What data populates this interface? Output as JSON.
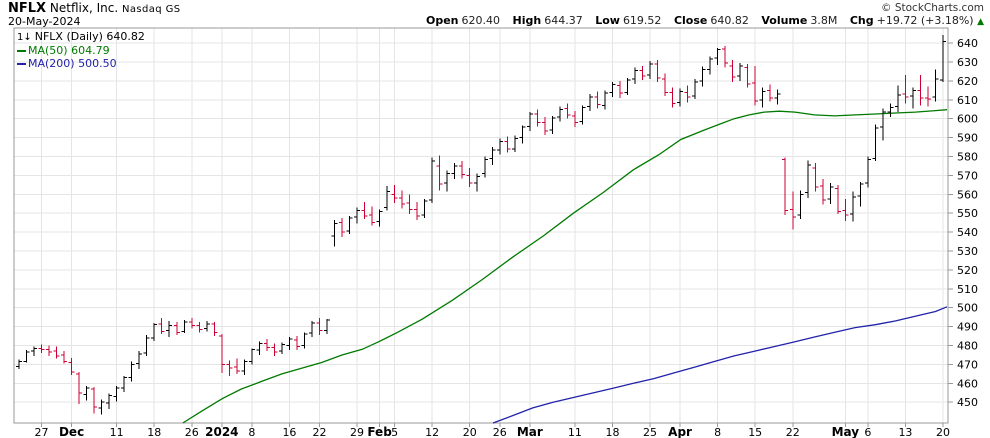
{
  "header": {
    "symbol": "NFLX",
    "company": "Netflix, Inc.",
    "exchange": "Nasdaq GS",
    "date": "20-May-2024",
    "copyright": "© StockCharts.com",
    "quote": {
      "open_label": "Open",
      "open": "620.40",
      "high_label": "High",
      "high": "644.37",
      "low_label": "Low",
      "low": "619.52",
      "close_label": "Close",
      "close": "640.82",
      "volume_label": "Volume",
      "volume": "3.8M",
      "chg_label": "Chg",
      "chg": "+19.72 (+3.18%)",
      "chg_arrow": "▲",
      "chg_direction": "up"
    }
  },
  "legend": {
    "icon": "1↓",
    "symbol_line": "NFLX (Daily) 640.82",
    "ma50_line": "MA(50) 604.79",
    "ma200_line": "MA(200) 500.50",
    "ma50_value": 604.79,
    "ma200_value": 500.5,
    "last_value": 640.82
  },
  "colors": {
    "up": "#000000",
    "down": "#cc0033",
    "ma50": "#007a00",
    "ma200": "#2222aa",
    "grid": "#e5e5e5",
    "axis": "#999999",
    "label": "#000000",
    "chg_arrow": "#007a00"
  },
  "chart_data": {
    "type": "ohlc-bar",
    "symbol": "NFLX",
    "timeframe": "Daily",
    "title": "NFLX (Daily) 640.82",
    "legend_position": "top-left",
    "grid": true,
    "y_axis": {
      "min": 450,
      "max": 640,
      "step": 10,
      "side": "right"
    },
    "y_ticks": [
      450,
      460,
      470,
      480,
      490,
      500,
      510,
      520,
      530,
      540,
      550,
      560,
      570,
      580,
      590,
      600,
      610,
      620,
      630,
      640
    ],
    "x_ticks": [
      {
        "i": 3,
        "label": "27"
      },
      {
        "i": 7,
        "label": "Dec",
        "bold": true
      },
      {
        "i": 13,
        "label": "11"
      },
      {
        "i": 18,
        "label": "18"
      },
      {
        "i": 23,
        "label": "26"
      },
      {
        "i": 27,
        "label": "2024",
        "bold": true
      },
      {
        "i": 31,
        "label": "8"
      },
      {
        "i": 36,
        "label": "16"
      },
      {
        "i": 40,
        "label": "22"
      },
      {
        "i": 45,
        "label": "29"
      },
      {
        "i": 48,
        "label": "Feb",
        "bold": true
      },
      {
        "i": 50,
        "label": "5"
      },
      {
        "i": 55,
        "label": "12"
      },
      {
        "i": 60,
        "label": "20"
      },
      {
        "i": 64,
        "label": "26"
      },
      {
        "i": 68,
        "label": "Mar",
        "bold": true
      },
      {
        "i": 74,
        "label": "11"
      },
      {
        "i": 79,
        "label": "18"
      },
      {
        "i": 84,
        "label": "25"
      },
      {
        "i": 88,
        "label": "Apr",
        "bold": true
      },
      {
        "i": 93,
        "label": "8"
      },
      {
        "i": 98,
        "label": "15"
      },
      {
        "i": 103,
        "label": "22"
      },
      {
        "i": 110,
        "label": "May",
        "bold": true
      },
      {
        "i": 113,
        "label": "6"
      },
      {
        "i": 118,
        "label": "13"
      },
      {
        "i": 123,
        "label": "20"
      }
    ],
    "bars": [
      [
        "2023-11-21",
        469,
        472.5,
        467.5,
        471.5
      ],
      [
        "2023-11-22",
        471.5,
        477.5,
        471,
        476.5
      ],
      [
        "2023-11-24",
        477,
        479.5,
        474.5,
        478.5
      ],
      [
        "2023-11-27",
        478.5,
        480.5,
        476,
        478
      ],
      [
        "2023-11-28",
        478,
        480,
        474.5,
        476.5
      ],
      [
        "2023-11-29",
        477,
        479.5,
        473,
        474.5
      ],
      [
        "2023-11-30",
        475,
        477,
        470.5,
        471.5
      ],
      [
        "2023-12-01",
        471,
        473.5,
        464.5,
        466
      ],
      [
        "2023-12-04",
        465,
        466,
        449,
        455
      ],
      [
        "2023-12-05",
        454,
        458.5,
        451,
        457.5
      ],
      [
        "2023-12-06",
        457,
        458,
        444,
        447.5
      ],
      [
        "2023-12-07",
        447,
        451.5,
        443.5,
        450
      ],
      [
        "2023-12-08",
        449.5,
        454.5,
        446.5,
        453.5
      ],
      [
        "2023-12-11",
        453,
        458.5,
        450.5,
        457.5
      ],
      [
        "2023-12-12",
        457.5,
        464,
        455.5,
        463
      ],
      [
        "2023-12-13",
        463,
        471.5,
        461,
        470
      ],
      [
        "2023-12-14",
        470.5,
        477,
        467.5,
        475.5
      ],
      [
        "2023-12-15",
        476,
        485.5,
        474.5,
        484
      ],
      [
        "2023-12-18",
        484,
        492,
        482.5,
        491
      ],
      [
        "2023-12-19",
        491.5,
        494.5,
        486,
        487.5
      ],
      [
        "2023-12-20",
        488,
        493,
        484.5,
        490.5
      ],
      [
        "2023-12-21",
        490.5,
        492.5,
        485.5,
        487
      ],
      [
        "2023-12-22",
        487.5,
        493.5,
        486.5,
        492.5
      ],
      [
        "2023-12-26",
        492.5,
        494.5,
        489,
        490.5
      ],
      [
        "2023-12-27",
        490.5,
        492.5,
        487,
        488.5
      ],
      [
        "2023-12-28",
        489,
        493,
        487.5,
        491.5
      ],
      [
        "2023-12-29",
        491.5,
        492.5,
        485,
        487
      ],
      [
        "2024-01-02",
        485,
        486,
        465.5,
        470
      ],
      [
        "2024-01-03",
        470,
        472,
        464,
        468
      ],
      [
        "2024-01-04",
        468.5,
        473,
        465,
        466.5
      ],
      [
        "2024-01-05",
        466.5,
        472.5,
        464.5,
        471.5
      ],
      [
        "2024-01-08",
        471.5,
        478.5,
        470,
        478
      ],
      [
        "2024-01-09",
        477.5,
        482,
        475,
        481
      ],
      [
        "2024-01-10",
        481,
        483.5,
        477,
        479
      ],
      [
        "2024-01-11",
        479,
        481,
        474.5,
        476.5
      ],
      [
        "2024-01-12",
        477,
        481.5,
        475.5,
        480.5
      ],
      [
        "2024-01-16",
        480,
        484.5,
        477.5,
        483.5
      ],
      [
        "2024-01-17",
        483,
        485,
        477.5,
        479.5
      ],
      [
        "2024-01-18",
        480,
        487,
        478.5,
        486
      ],
      [
        "2024-01-19",
        486.5,
        493,
        484.5,
        492
      ],
      [
        "2024-01-22",
        492,
        494.5,
        485.5,
        488
      ],
      [
        "2024-01-23",
        488,
        494,
        486,
        493.5
      ],
      [
        "2024-01-24",
        538,
        546.5,
        532.5,
        544.5
      ],
      [
        "2024-01-25",
        545,
        547.5,
        537.5,
        540
      ],
      [
        "2024-01-26",
        540.5,
        548.5,
        539,
        547.5
      ],
      [
        "2024-01-29",
        548,
        553,
        544.5,
        551.5
      ],
      [
        "2024-01-30",
        551.5,
        556,
        547,
        548.5
      ],
      [
        "2024-01-31",
        549,
        553.5,
        543.5,
        545
      ],
      [
        "2024-02-01",
        545.5,
        552,
        543,
        551
      ],
      [
        "2024-02-02",
        553,
        564.5,
        551.5,
        561.5
      ],
      [
        "2024-02-05",
        560,
        565,
        555.5,
        558
      ],
      [
        "2024-02-06",
        558,
        562,
        552.5,
        555
      ],
      [
        "2024-02-07",
        555.5,
        560,
        549.5,
        552
      ],
      [
        "2024-02-08",
        552,
        556,
        546.5,
        548.5
      ],
      [
        "2024-02-09",
        549,
        557.5,
        547.5,
        556.5
      ],
      [
        "2024-02-12",
        557,
        579.5,
        555.5,
        577.5
      ],
      [
        "2024-02-13",
        575,
        580.5,
        562,
        565.5
      ],
      [
        "2024-02-14",
        566,
        572.5,
        561.5,
        571
      ],
      [
        "2024-02-15",
        571,
        576.5,
        568,
        575
      ],
      [
        "2024-02-16",
        575,
        577.5,
        568.5,
        570.5
      ],
      [
        "2024-02-20",
        570,
        574,
        564,
        566
      ],
      [
        "2024-02-21",
        566,
        571,
        561.5,
        569.5
      ],
      [
        "2024-02-22",
        571,
        580,
        569,
        578.5
      ],
      [
        "2024-02-23",
        579,
        585,
        575.5,
        583.5
      ],
      [
        "2024-02-26",
        583.5,
        589.5,
        581,
        588
      ],
      [
        "2024-02-27",
        588,
        590.5,
        582,
        584
      ],
      [
        "2024-02-28",
        584,
        591,
        582.5,
        589.5
      ],
      [
        "2024-02-29",
        590,
        596.5,
        587,
        595.5
      ],
      [
        "2024-03-01",
        596,
        603.5,
        593.5,
        602.5
      ],
      [
        "2024-03-04",
        602.5,
        605,
        596,
        598
      ],
      [
        "2024-03-05",
        598,
        601,
        591.5,
        593.5
      ],
      [
        "2024-03-06",
        594,
        601.5,
        592,
        600.5
      ],
      [
        "2024-03-07",
        601,
        606.5,
        598.5,
        605
      ],
      [
        "2024-03-08",
        605.5,
        608,
        600,
        602
      ],
      [
        "2024-03-11",
        601.5,
        604,
        595.5,
        598
      ],
      [
        "2024-03-12",
        598.5,
        607,
        597,
        606
      ],
      [
        "2024-03-13",
        606.5,
        613,
        604,
        611.5
      ],
      [
        "2024-03-14",
        611.5,
        614.5,
        605.5,
        607.5
      ],
      [
        "2024-03-15",
        607,
        615,
        605,
        613.5
      ],
      [
        "2024-03-18",
        614,
        619.5,
        611.5,
        618
      ],
      [
        "2024-03-19",
        617.5,
        620,
        611,
        613.5
      ],
      [
        "2024-03-20",
        614,
        621.5,
        612.5,
        620.5
      ],
      [
        "2024-03-21",
        621,
        627,
        618.5,
        625.5
      ],
      [
        "2024-03-22",
        625.5,
        628,
        620.5,
        622.5
      ],
      [
        "2024-03-25",
        623,
        630.5,
        621,
        629
      ],
      [
        "2024-03-26",
        629,
        631,
        619.5,
        621.5
      ],
      [
        "2024-03-27",
        621,
        624,
        612,
        614
      ],
      [
        "2024-03-28",
        614,
        616.5,
        606,
        608
      ],
      [
        "2024-04-01",
        608.5,
        616,
        606.5,
        614.5
      ],
      [
        "2024-04-02",
        614,
        617.5,
        608.5,
        611.5
      ],
      [
        "2024-04-03",
        612,
        621,
        610.5,
        619.5
      ],
      [
        "2024-04-04",
        620,
        627.5,
        617,
        626
      ],
      [
        "2024-04-05",
        626,
        633,
        623.5,
        631.5
      ],
      [
        "2024-04-08",
        632,
        637.5,
        628.5,
        636.5
      ],
      [
        "2024-04-09",
        637,
        638.5,
        627,
        629.5
      ],
      [
        "2024-04-10",
        628,
        631,
        619.5,
        622
      ],
      [
        "2024-04-11",
        622.5,
        629.5,
        620,
        628
      ],
      [
        "2024-04-12",
        627,
        629,
        616.5,
        618.5
      ],
      [
        "2024-04-15",
        619,
        628,
        607,
        609.5
      ],
      [
        "2024-04-16",
        610,
        616.5,
        606,
        614.5
      ],
      [
        "2024-04-17",
        615,
        618,
        609,
        611
      ],
      [
        "2024-04-18",
        611,
        615.5,
        607.5,
        613
      ],
      [
        "2024-04-19",
        578.5,
        579.5,
        549,
        551.5
      ],
      [
        "2024-04-22",
        552,
        561.5,
        541.5,
        548
      ],
      [
        "2024-04-23",
        549,
        562,
        547,
        560
      ],
      [
        "2024-04-24",
        561,
        578,
        558,
        575.5
      ],
      [
        "2024-04-25",
        574,
        576.5,
        561.5,
        564
      ],
      [
        "2024-04-26",
        564.5,
        568,
        554.5,
        557
      ],
      [
        "2024-04-29",
        557.5,
        566,
        555,
        564
      ],
      [
        "2024-04-30",
        563,
        565,
        549.5,
        551
      ],
      [
        "2024-05-01",
        551.5,
        557.5,
        546,
        549
      ],
      [
        "2024-05-02",
        549.5,
        561.5,
        545.5,
        558.5
      ],
      [
        "2024-05-03",
        559,
        566.5,
        553.5,
        565.5
      ],
      [
        "2024-05-06",
        566,
        580,
        563.5,
        578.5
      ],
      [
        "2024-05-07",
        579,
        597,
        577.5,
        595
      ],
      [
        "2024-05-08",
        595.5,
        605.5,
        588.5,
        603.5
      ],
      [
        "2024-05-09",
        603.5,
        608,
        601,
        606
      ],
      [
        "2024-05-10",
        606.5,
        617.5,
        603.5,
        612.5
      ],
      [
        "2024-05-13",
        613,
        623,
        608,
        611.5
      ],
      [
        "2024-05-14",
        612,
        616.5,
        605.5,
        615
      ],
      [
        "2024-05-15",
        615,
        623,
        607,
        611
      ],
      [
        "2024-05-16",
        611,
        617,
        606.5,
        610.5
      ],
      [
        "2024-05-17",
        611.5,
        626,
        609,
        621.1
      ],
      [
        "2024-05-20",
        620.4,
        644.37,
        619.52,
        640.82
      ]
    ],
    "ma50": [
      [
        21.8,
        439
      ],
      [
        24.2,
        445
      ],
      [
        27.1,
        452
      ],
      [
        29.6,
        457
      ],
      [
        32.3,
        461
      ],
      [
        35,
        465
      ],
      [
        37.6,
        468
      ],
      [
        40.3,
        471
      ],
      [
        43,
        475
      ],
      [
        45.7,
        478
      ],
      [
        47.9,
        482
      ],
      [
        50.4,
        487
      ],
      [
        53.7,
        494
      ],
      [
        57.7,
        504
      ],
      [
        61.7,
        515
      ],
      [
        65.8,
        527
      ],
      [
        69.8,
        538
      ],
      [
        73.8,
        550
      ],
      [
        77.8,
        561
      ],
      [
        81.8,
        573
      ],
      [
        85.2,
        581
      ],
      [
        88.1,
        589
      ],
      [
        91.2,
        594
      ],
      [
        93.2,
        597
      ],
      [
        95.2,
        600
      ],
      [
        97.2,
        602
      ],
      [
        99.2,
        603.5
      ],
      [
        101.2,
        604
      ],
      [
        103.3,
        603.5
      ],
      [
        105.9,
        602
      ],
      [
        108.6,
        601.5
      ],
      [
        111.3,
        602
      ],
      [
        114,
        602.5
      ],
      [
        116.7,
        603
      ],
      [
        119.3,
        603.5
      ],
      [
        122,
        604.3
      ],
      [
        124.4,
        604.79
      ]
    ],
    "ma200": [
      [
        63.1,
        439
      ],
      [
        65.8,
        443
      ],
      [
        68.4,
        447
      ],
      [
        71.1,
        450
      ],
      [
        73.8,
        452.5
      ],
      [
        76.5,
        455
      ],
      [
        79.2,
        457.5
      ],
      [
        81.8,
        460
      ],
      [
        84.5,
        462.5
      ],
      [
        87.2,
        465.5
      ],
      [
        89.9,
        468.5
      ],
      [
        92.5,
        471.5
      ],
      [
        95.2,
        474.5
      ],
      [
        97.9,
        477
      ],
      [
        100.6,
        479.5
      ],
      [
        103.3,
        482
      ],
      [
        105.9,
        484.5
      ],
      [
        108.6,
        487
      ],
      [
        111.3,
        489.5
      ],
      [
        114,
        491
      ],
      [
        116.7,
        493
      ],
      [
        119.3,
        495.5
      ],
      [
        122,
        498
      ],
      [
        124.4,
        500.5
      ]
    ]
  }
}
